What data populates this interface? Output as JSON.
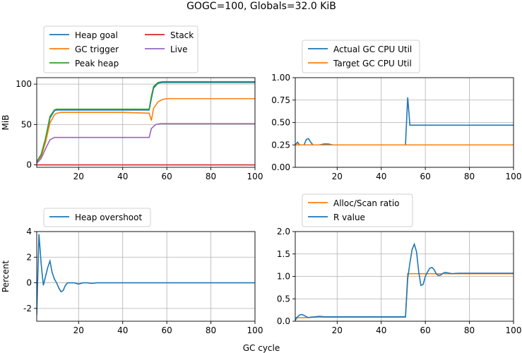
{
  "figure": {
    "suptitle": "GOGC=100, Globals=32.0 KiB",
    "xlabel": "GC cycle"
  },
  "chart_data": [
    {
      "type": "line",
      "xlabel": "",
      "ylabel": "MiB",
      "xlim": [
        1,
        100
      ],
      "ylim": [
        -3,
        108
      ],
      "xticks": [
        20,
        40,
        60,
        80,
        100
      ],
      "yticks": [
        0,
        50,
        100
      ],
      "grid": true,
      "legend_position": "above",
      "series": [
        {
          "name": "Heap goal",
          "color": "#1f77b4",
          "points": [
            [
              1,
              4
            ],
            [
              3,
              12
            ],
            [
              5,
              32
            ],
            [
              7,
              58
            ],
            [
              9,
              67
            ],
            [
              10,
              68
            ],
            [
              12,
              68
            ],
            [
              20,
              68
            ],
            [
              30,
              68
            ],
            [
              40,
              68
            ],
            [
              52,
              68
            ],
            [
              53,
              82
            ],
            [
              54,
              95
            ],
            [
              56,
              101
            ],
            [
              58,
              102
            ],
            [
              60,
              102
            ],
            [
              70,
              102
            ],
            [
              80,
              102
            ],
            [
              90,
              102
            ],
            [
              100,
              102
            ]
          ]
        },
        {
          "name": "GC trigger",
          "color": "#ff7f0e",
          "points": [
            [
              1,
              3
            ],
            [
              3,
              10
            ],
            [
              5,
              28
            ],
            [
              7,
              52
            ],
            [
              9,
              62
            ],
            [
              10,
              64
            ],
            [
              12,
              65
            ],
            [
              20,
              65
            ],
            [
              30,
              65
            ],
            [
              40,
              65
            ],
            [
              52,
              64
            ],
            [
              53,
              55
            ],
            [
              54,
              70
            ],
            [
              56,
              78
            ],
            [
              58,
              81
            ],
            [
              60,
              82
            ],
            [
              70,
              82
            ],
            [
              80,
              82
            ],
            [
              90,
              82
            ],
            [
              100,
              82
            ]
          ]
        },
        {
          "name": "Peak heap",
          "color": "#2ca02c",
          "points": [
            [
              1,
              4
            ],
            [
              3,
              13
            ],
            [
              5,
              33
            ],
            [
              7,
              60
            ],
            [
              9,
              68
            ],
            [
              10,
              69
            ],
            [
              12,
              69
            ],
            [
              20,
              69
            ],
            [
              30,
              69
            ],
            [
              40,
              69
            ],
            [
              52,
              69
            ],
            [
              53,
              85
            ],
            [
              54,
              97
            ],
            [
              56,
              102
            ],
            [
              58,
              103
            ],
            [
              60,
              103
            ],
            [
              70,
              103
            ],
            [
              80,
              103
            ],
            [
              90,
              103
            ],
            [
              100,
              103
            ]
          ]
        },
        {
          "name": "Stack",
          "color": "#d62728",
          "points": [
            [
              1,
              0
            ],
            [
              100,
              0
            ]
          ]
        },
        {
          "name": "Live",
          "color": "#9467bd",
          "points": [
            [
              1,
              2
            ],
            [
              3,
              8
            ],
            [
              5,
              20
            ],
            [
              7,
              31
            ],
            [
              9,
              34
            ],
            [
              12,
              34
            ],
            [
              20,
              34
            ],
            [
              30,
              34
            ],
            [
              40,
              34
            ],
            [
              52,
              34
            ],
            [
              53,
              45
            ],
            [
              55,
              50
            ],
            [
              57,
              51
            ],
            [
              60,
              51
            ],
            [
              70,
              51
            ],
            [
              80,
              51
            ],
            [
              90,
              51
            ],
            [
              100,
              51
            ]
          ]
        }
      ]
    },
    {
      "type": "line",
      "xlabel": "",
      "ylabel": "",
      "xlim": [
        1,
        100
      ],
      "ylim": [
        0,
        1.0
      ],
      "xticks": [
        20,
        40,
        60,
        80,
        100
      ],
      "yticks": [
        0.0,
        0.25,
        0.5,
        0.75,
        1.0
      ],
      "grid": true,
      "legend_position": "above",
      "series": [
        {
          "name": "Actual GC CPU Util",
          "color": "#1f77b4",
          "points": [
            [
              1,
              0.25
            ],
            [
              2,
              0.28
            ],
            [
              3,
              0.25
            ],
            [
              4,
              0.25
            ],
            [
              5,
              0.25
            ],
            [
              6,
              0.31
            ],
            [
              7,
              0.32
            ],
            [
              8,
              0.28
            ],
            [
              9,
              0.25
            ],
            [
              10,
              0.25
            ],
            [
              12,
              0.25
            ],
            [
              14,
              0.26
            ],
            [
              16,
              0.26
            ],
            [
              18,
              0.25
            ],
            [
              20,
              0.25
            ],
            [
              30,
              0.25
            ],
            [
              40,
              0.25
            ],
            [
              51,
              0.25
            ],
            [
              52,
              0.78
            ],
            [
              53,
              0.47
            ],
            [
              60,
              0.47
            ],
            [
              70,
              0.47
            ],
            [
              80,
              0.47
            ],
            [
              90,
              0.47
            ],
            [
              100,
              0.47
            ]
          ]
        },
        {
          "name": "Target GC CPU Util",
          "color": "#ff7f0e",
          "points": [
            [
              1,
              0.25
            ],
            [
              100,
              0.25
            ]
          ]
        }
      ]
    },
    {
      "type": "line",
      "xlabel": "",
      "ylabel": "Percent",
      "xlim": [
        1,
        100
      ],
      "ylim": [
        -3,
        4
      ],
      "xticks": [
        20,
        40,
        60,
        80,
        100
      ],
      "yticks": [
        -2,
        0,
        2,
        4
      ],
      "grid": true,
      "legend_position": "above",
      "series": [
        {
          "name": "Heap overshoot",
          "color": "#1f77b4",
          "points": [
            [
              1,
              -2.5
            ],
            [
              2,
              3.8
            ],
            [
              3,
              1.5
            ],
            [
              4,
              -0.2
            ],
            [
              5,
              0.5
            ],
            [
              6,
              1.2
            ],
            [
              7,
              1.7
            ],
            [
              8,
              0.8
            ],
            [
              9,
              0.3
            ],
            [
              10,
              0.0
            ],
            [
              11,
              -0.4
            ],
            [
              12,
              -0.7
            ],
            [
              13,
              -0.6
            ],
            [
              14,
              -0.2
            ],
            [
              15,
              0.0
            ],
            [
              16,
              0.0
            ],
            [
              18,
              0.0
            ],
            [
              20,
              -0.1
            ],
            [
              22,
              0.0
            ],
            [
              24,
              0.0
            ],
            [
              26,
              -0.05
            ],
            [
              28,
              0.0
            ],
            [
              30,
              0.0
            ],
            [
              40,
              0.0
            ],
            [
              50,
              0.0
            ],
            [
              60,
              0.0
            ],
            [
              70,
              0.0
            ],
            [
              80,
              0.0
            ],
            [
              90,
              0.0
            ],
            [
              100,
              0.0
            ]
          ]
        }
      ]
    },
    {
      "type": "line",
      "xlabel": "",
      "ylabel": "",
      "xlim": [
        1,
        100
      ],
      "ylim": [
        0,
        2.0
      ],
      "xticks": [
        20,
        40,
        60,
        80,
        100
      ],
      "yticks": [
        0.0,
        0.5,
        1.0,
        1.5,
        2.0
      ],
      "grid": true,
      "legend_position": "above",
      "series": [
        {
          "name": "Alloc/Scan ratio",
          "color": "#ff7f0e",
          "points": [
            [
              1,
              0.08
            ],
            [
              5,
              0.08
            ],
            [
              10,
              0.09
            ],
            [
              20,
              0.09
            ],
            [
              30,
              0.09
            ],
            [
              40,
              0.09
            ],
            [
              51,
              0.09
            ],
            [
              52,
              1.06
            ],
            [
              60,
              1.06
            ],
            [
              70,
              1.06
            ],
            [
              80,
              1.06
            ],
            [
              90,
              1.06
            ],
            [
              100,
              1.06
            ]
          ]
        },
        {
          "name": "R value",
          "color": "#1f77b4",
          "points": [
            [
              1,
              0.02
            ],
            [
              2,
              0.1
            ],
            [
              3,
              0.14
            ],
            [
              4,
              0.15
            ],
            [
              5,
              0.13
            ],
            [
              6,
              0.1
            ],
            [
              7,
              0.08
            ],
            [
              8,
              0.09
            ],
            [
              10,
              0.1
            ],
            [
              12,
              0.11
            ],
            [
              14,
              0.1
            ],
            [
              16,
              0.1
            ],
            [
              20,
              0.1
            ],
            [
              30,
              0.1
            ],
            [
              40,
              0.1
            ],
            [
              51,
              0.1
            ],
            [
              52,
              0.95
            ],
            [
              53,
              1.3
            ],
            [
              54,
              1.6
            ],
            [
              55,
              1.72
            ],
            [
              56,
              1.55
            ],
            [
              57,
              1.1
            ],
            [
              58,
              0.8
            ],
            [
              59,
              0.82
            ],
            [
              60,
              1.0
            ],
            [
              61,
              1.1
            ],
            [
              62,
              1.18
            ],
            [
              63,
              1.2
            ],
            [
              64,
              1.15
            ],
            [
              65,
              1.05
            ],
            [
              66,
              1.02
            ],
            [
              67,
              1.03
            ],
            [
              68,
              1.07
            ],
            [
              69,
              1.09
            ],
            [
              70,
              1.08
            ],
            [
              72,
              1.06
            ],
            [
              75,
              1.07
            ],
            [
              80,
              1.07
            ],
            [
              85,
              1.07
            ],
            [
              90,
              1.07
            ],
            [
              95,
              1.07
            ],
            [
              100,
              1.07
            ]
          ]
        }
      ]
    }
  ]
}
